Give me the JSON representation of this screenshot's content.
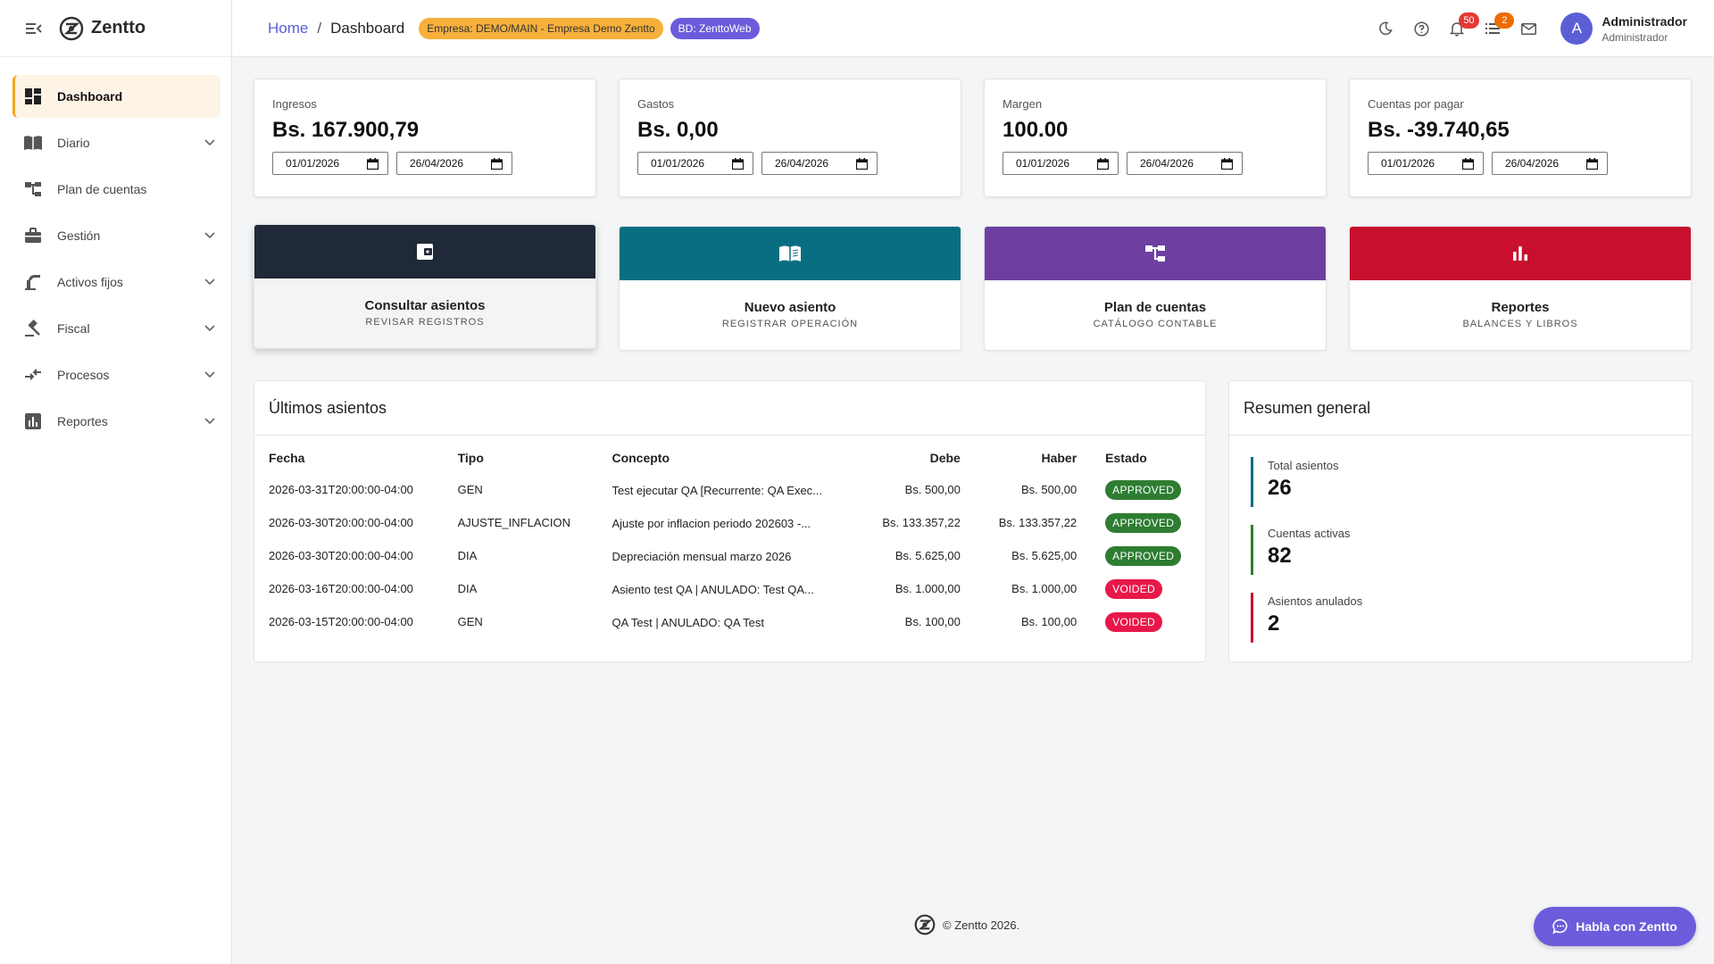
{
  "app": {
    "name": "Zentto"
  },
  "colors": {
    "accent": "#5a5fd6",
    "orange": "#f6b03b",
    "approved": "#2e7d32",
    "voided": "#e8174a"
  },
  "sidebar": {
    "items": [
      {
        "label": "Dashboard",
        "icon": "dashboard-icon",
        "active": true,
        "expandable": false
      },
      {
        "label": "Diario",
        "icon": "journal-icon",
        "expandable": true
      },
      {
        "label": "Plan de cuentas",
        "icon": "account-tree-icon",
        "expandable": false
      },
      {
        "label": "Gestión",
        "icon": "briefcase-icon",
        "expandable": true
      },
      {
        "label": "Activos fijos",
        "icon": "assets-icon",
        "expandable": true
      },
      {
        "label": "Fiscal",
        "icon": "gavel-icon",
        "expandable": true
      },
      {
        "label": "Procesos",
        "icon": "process-icon",
        "expandable": true
      },
      {
        "label": "Reportes",
        "icon": "bar-chart-icon",
        "expandable": true
      }
    ]
  },
  "header": {
    "breadcrumb_home": "Home",
    "breadcrumb_sep": "/",
    "breadcrumb_current": "Dashboard",
    "company_chip": "Empresa: DEMO/MAIN - Empresa Demo Zentto",
    "db_chip": "BD: ZenttoWeb",
    "notifications_badge": "50",
    "tasks_badge": "2",
    "avatar_letter": "A",
    "user_name": "Administrador",
    "user_role": "Administrador"
  },
  "kpis": [
    {
      "label": "Ingresos",
      "value": "Bs. 167.900,79",
      "from": "01/01/2026",
      "to": "26/04/2026"
    },
    {
      "label": "Gastos",
      "value": "Bs. 0,00",
      "from": "01/01/2026",
      "to": "26/04/2026"
    },
    {
      "label": "Margen",
      "value": "100.00",
      "from": "01/01/2026",
      "to": "26/04/2026"
    },
    {
      "label": "Cuentas por pagar",
      "value": "Bs. -39.740,65",
      "from": "01/01/2026",
      "to": "26/04/2026"
    }
  ],
  "actions": [
    {
      "title": "Consultar asientos",
      "subtitle": "REVISAR REGISTROS",
      "color": "#1f2937",
      "icon": "wallet-icon"
    },
    {
      "title": "Nuevo asiento",
      "subtitle": "REGISTRAR OPERACIÓN",
      "color": "#0a6e82",
      "icon": "book-icon"
    },
    {
      "title": "Plan de cuentas",
      "subtitle": "CATÁLOGO CONTABLE",
      "color": "#6c3fa0",
      "icon": "account-tree-icon"
    },
    {
      "title": "Reportes",
      "subtitle": "BALANCES Y LIBROS",
      "color": "#c8102e",
      "icon": "bar-chart-icon"
    }
  ],
  "entries": {
    "title": "Últimos asientos",
    "columns": [
      "Fecha",
      "Tipo",
      "Concepto",
      "Debe",
      "Haber",
      "Estado"
    ],
    "rows": [
      {
        "fecha": "2026-03-31T20:00:00-04:00",
        "tipo": "GEN",
        "concepto": "Test ejecutar QA [Recurrente: QA Exec...",
        "debe": "Bs. 500,00",
        "haber": "Bs. 500,00",
        "estado": "APPROVED"
      },
      {
        "fecha": "2026-03-30T20:00:00-04:00",
        "tipo": "AJUSTE_INFLACION",
        "concepto": "Ajuste por inflacion periodo 202603 -...",
        "debe": "Bs. 133.357,22",
        "haber": "Bs. 133.357,22",
        "estado": "APPROVED"
      },
      {
        "fecha": "2026-03-30T20:00:00-04:00",
        "tipo": "DIA",
        "concepto": "Depreciación mensual marzo 2026",
        "debe": "Bs. 5.625,00",
        "haber": "Bs. 5.625,00",
        "estado": "APPROVED"
      },
      {
        "fecha": "2026-03-16T20:00:00-04:00",
        "tipo": "DIA",
        "concepto": "Asiento test QA | ANULADO: Test QA...",
        "debe": "Bs. 1.000,00",
        "haber": "Bs. 1.000,00",
        "estado": "VOIDED"
      },
      {
        "fecha": "2026-03-15T20:00:00-04:00",
        "tipo": "GEN",
        "concepto": "QA Test | ANULADO: QA Test",
        "debe": "Bs. 100,00",
        "haber": "Bs. 100,00",
        "estado": "VOIDED"
      }
    ]
  },
  "summary": {
    "title": "Resumen general",
    "items": [
      {
        "label": "Total asientos",
        "value": "26",
        "color": "#0a6e82"
      },
      {
        "label": "Cuentas activas",
        "value": "82",
        "color": "#2e7d32"
      },
      {
        "label": "Asientos anulados",
        "value": "2",
        "color": "#c8102e"
      }
    ]
  },
  "footer": {
    "text": "© Zentto 2026."
  },
  "chat": {
    "label": "Habla con Zentto"
  }
}
